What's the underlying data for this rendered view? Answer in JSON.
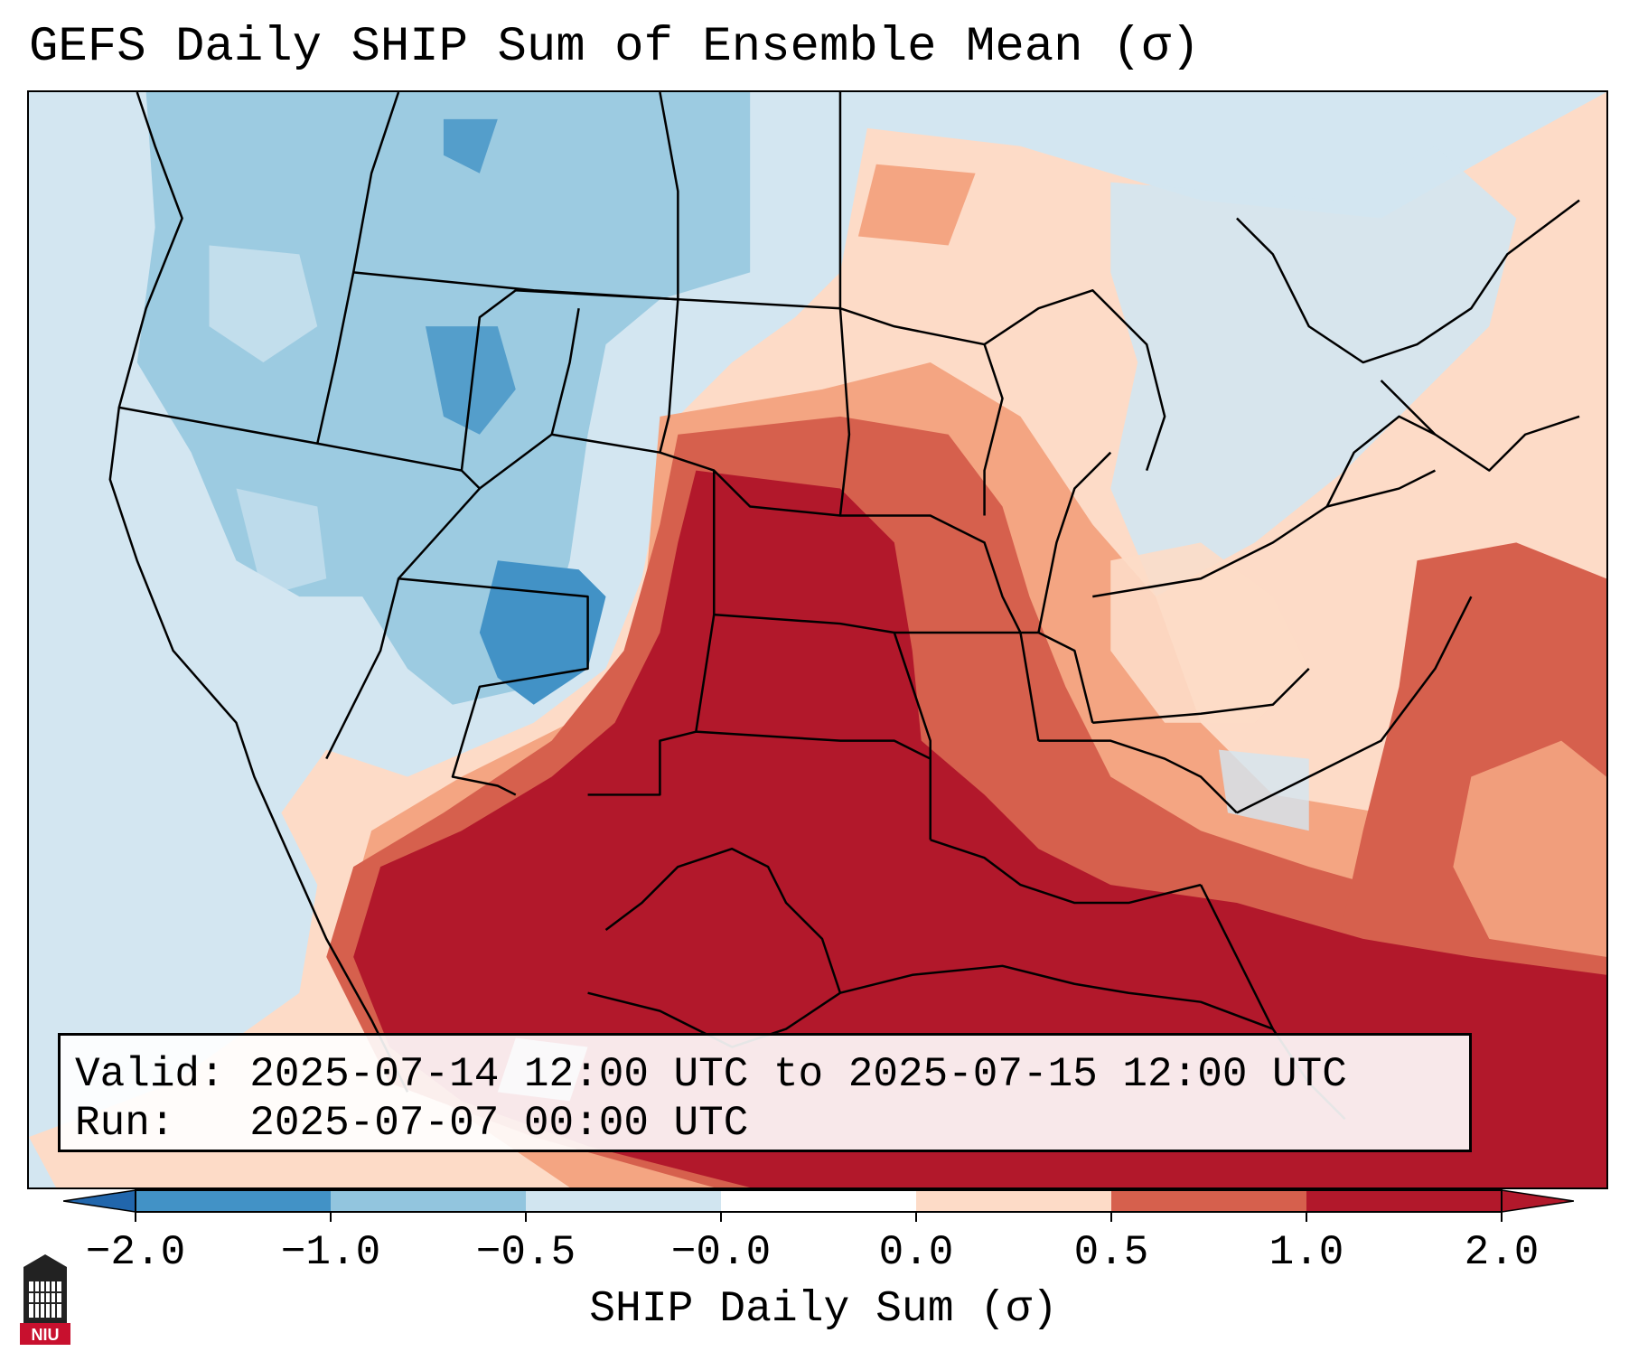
{
  "title": "GEFS Daily SHIP Sum of Ensemble Mean (σ)",
  "info": {
    "valid_label": "Valid:",
    "valid_value": "2025-07-14 12:00 UTC to 2025-07-15 12:00 UTC",
    "run_label": "Run:",
    "run_value": "2025-07-07 00:00 UTC"
  },
  "colorbar": {
    "label": "SHIP Daily Sum (σ)",
    "ticks": [
      "−2.0",
      "−1.0",
      "−0.5",
      "−0.0",
      "0.0",
      "0.5",
      "1.0",
      "2.0"
    ],
    "colors": [
      "#4292c6",
      "#92c5de",
      "#d1e5f0",
      "#ffffff",
      "#fddbc7",
      "#f4a582",
      "#d6604d",
      "#b2182b"
    ],
    "extend_low_color": "#2166ac",
    "extend_high_color": "#b2182b"
  },
  "logo": {
    "text": "NIU",
    "icon": "university-tower-icon"
  }
}
